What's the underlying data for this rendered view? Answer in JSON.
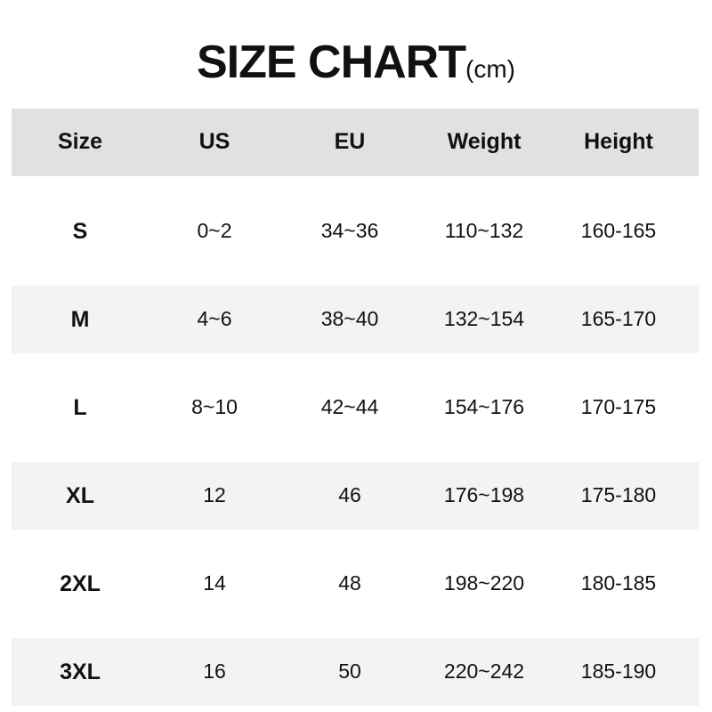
{
  "title": {
    "main": "SIZE CHART",
    "unit": "(cm)"
  },
  "colors": {
    "header_bg": "#e1e1e1",
    "stripe_bg": "#f3f3f3"
  },
  "columns": [
    "Size",
    "US",
    "EU",
    "Weight",
    "Height"
  ],
  "rows": [
    [
      "S",
      "0~2",
      "34~36",
      "110~132",
      "160-165"
    ],
    [
      "M",
      "4~6",
      "38~40",
      "132~154",
      "165-170"
    ],
    [
      "L",
      "8~10",
      "42~44",
      "154~176",
      "170-175"
    ],
    [
      "XL",
      "12",
      "46",
      "176~198",
      "175-180"
    ],
    [
      "2XL",
      "14",
      "48",
      "198~220",
      "180-185"
    ],
    [
      "3XL",
      "16",
      "50",
      "220~242",
      "185-190"
    ]
  ]
}
